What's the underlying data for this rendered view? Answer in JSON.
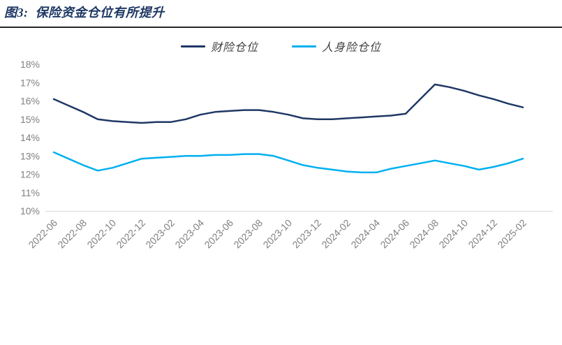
{
  "header": {
    "title": "图3:  保险资金仓位有所提升"
  },
  "colors": {
    "title": "#1f3864",
    "separator": "#262626",
    "tick_label": "#808080",
    "axis_line": "#d9d9d9",
    "series_property": "#1f3864",
    "series_life": "#00b0f0"
  },
  "chart_data": {
    "type": "line",
    "title": "保险资金仓位有所提升",
    "x": [
      "2022-06",
      "2022-07",
      "2022-08",
      "2022-09",
      "2022-10",
      "2022-11",
      "2022-12",
      "2023-01",
      "2023-02",
      "2023-03",
      "2023-04",
      "2023-05",
      "2023-06",
      "2023-07",
      "2023-08",
      "2023-09",
      "2023-10",
      "2023-11",
      "2023-12",
      "2024-01",
      "2024-02",
      "2024-03",
      "2024-04",
      "2024-05",
      "2024-06",
      "2024-07",
      "2024-08",
      "2024-09",
      "2024-10",
      "2024-11",
      "2024-12",
      "2025-01",
      "2025-02"
    ],
    "xtick_labels": [
      "2022-06",
      "2022-08",
      "2022-10",
      "2022-12",
      "2023-02",
      "2023-04",
      "2023-06",
      "2023-08",
      "2023-10",
      "2023-12",
      "2024-02",
      "2024-04",
      "2024-06",
      "2024-08",
      "2024-10",
      "2024-12",
      "2025-02"
    ],
    "ytick_labels": [
      "18%",
      "17%",
      "16%",
      "15%",
      "14%",
      "13%",
      "12%",
      "11%",
      "10%"
    ],
    "ylim": [
      10,
      18
    ],
    "grid": false,
    "legend_position": "top",
    "series": [
      {
        "name": "财险仓位",
        "color": "#1f3864",
        "values": [
          16.1,
          15.75,
          15.4,
          15.0,
          14.9,
          14.85,
          14.8,
          14.85,
          14.85,
          15.0,
          15.25,
          15.4,
          15.45,
          15.5,
          15.5,
          15.4,
          15.25,
          15.05,
          15.0,
          15.0,
          15.05,
          15.1,
          15.15,
          15.2,
          15.3,
          16.1,
          16.9,
          16.75,
          16.55,
          16.3,
          16.1,
          15.85,
          15.65
        ]
      },
      {
        "name": "人身险仓位",
        "color": "#00b0f0",
        "values": [
          13.2,
          12.85,
          12.5,
          12.2,
          12.35,
          12.6,
          12.85,
          12.9,
          12.95,
          13.0,
          13.0,
          13.05,
          13.05,
          13.1,
          13.1,
          13.0,
          12.75,
          12.5,
          12.35,
          12.25,
          12.15,
          12.1,
          12.1,
          12.3,
          12.45,
          12.6,
          12.75,
          12.6,
          12.45,
          12.25,
          12.4,
          12.6,
          12.85
        ]
      }
    ]
  }
}
